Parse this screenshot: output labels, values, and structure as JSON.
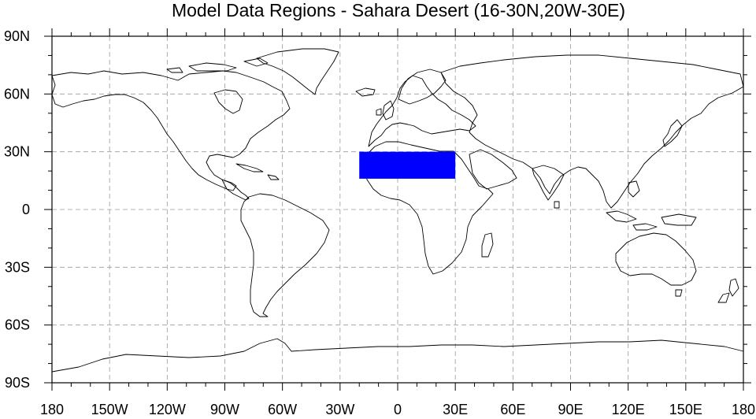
{
  "title": "Model Data Regions - Sahara Desert (16-30N,20W-30E)",
  "projection": "cylindrical-equidistant",
  "extent": {
    "lon": [
      -180,
      180
    ],
    "lat": [
      -90,
      90
    ]
  },
  "grid": {
    "lines": "dashed",
    "color": "#9a9a9a",
    "lon_step": 30,
    "lat_step": 30
  },
  "colors": {
    "region_fill": "#0000ff",
    "coastline": "#000000",
    "frame": "#000000"
  },
  "region": {
    "name": "Sahara Desert",
    "lat_min": 16,
    "lat_max": 30,
    "lon_min": -20,
    "lon_max": 30
  },
  "x_ticks": [
    {
      "value": -180,
      "label": "180"
    },
    {
      "value": -150,
      "label": "150W"
    },
    {
      "value": -120,
      "label": "120W"
    },
    {
      "value": -90,
      "label": "90W"
    },
    {
      "value": -60,
      "label": "60W"
    },
    {
      "value": -30,
      "label": "30W"
    },
    {
      "value": 0,
      "label": "0"
    },
    {
      "value": 30,
      "label": "30E"
    },
    {
      "value": 60,
      "label": "60E"
    },
    {
      "value": 90,
      "label": "90E"
    },
    {
      "value": 120,
      "label": "120E"
    },
    {
      "value": 150,
      "label": "150E"
    },
    {
      "value": 180,
      "label": "180"
    }
  ],
  "y_ticks": [
    {
      "value": 90,
      "label": "90N"
    },
    {
      "value": 60,
      "label": "60N"
    },
    {
      "value": 30,
      "label": "30N"
    },
    {
      "value": 0,
      "label": "0"
    },
    {
      "value": -30,
      "label": "30S"
    },
    {
      "value": -60,
      "label": "60S"
    },
    {
      "value": -90,
      "label": "90S"
    }
  ]
}
